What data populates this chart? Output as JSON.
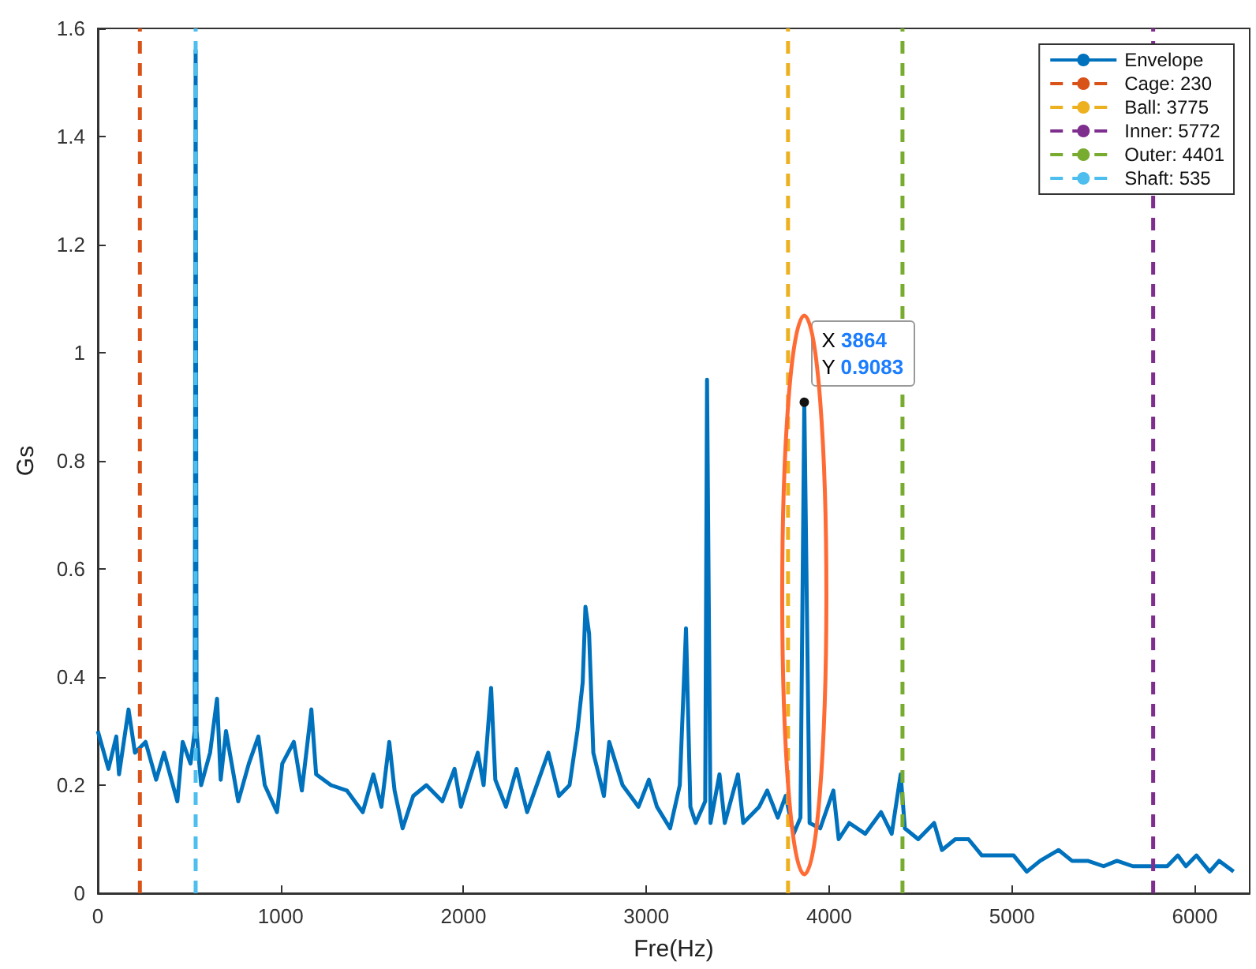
{
  "chart_data": {
    "type": "line",
    "xlabel": "Fre(Hz)",
    "ylabel": "Gs",
    "xlim": [
      0,
      6300
    ],
    "xticks": [
      0,
      1000,
      2000,
      3000,
      4000,
      5000,
      6000
    ],
    "ylim": [
      0,
      1.6
    ],
    "yticks": [
      0,
      {
        "value": 0.2,
        "label": "0.2"
      },
      {
        "value": 0.4,
        "label": "0.4"
      },
      {
        "value": 0.6,
        "label": "0.6"
      },
      {
        "value": 0.8,
        "label": "0.8"
      },
      1,
      {
        "value": 1.2,
        "label": "1.2"
      },
      {
        "value": 1.4,
        "label": "1.4"
      },
      {
        "value": 1.6,
        "label": "1.6"
      }
    ],
    "grid": false,
    "legend": "top right",
    "marker": "none",
    "annotations": [
      {
        "text": "X 3864\nY 0.9083",
        "x": 3864,
        "y": 0.9083
      }
    ],
    "series": [
      {
        "name": "Envelope",
        "color": "#0072bd",
        "line_style": "solid",
        "x": [
          0,
          58,
          101,
          116,
          168,
          203,
          261,
          319,
          362,
          435,
          464,
          507,
          530,
          535,
          540,
          565,
          614,
          652,
          672,
          701,
          768,
          826,
          878,
          913,
          980,
          1009,
          1072,
          1116,
          1168,
          1194,
          1275,
          1362,
          1449,
          1507,
          1551,
          1594,
          1623,
          1667,
          1725,
          1797,
          1884,
          1951,
          1986,
          2078,
          2110,
          2151,
          2174,
          2232,
          2290,
          2348,
          2464,
          2522,
          2580,
          2623,
          2652,
          2667,
          2687,
          2710,
          2768,
          2797,
          2870,
          2957,
          3014,
          3058,
          3130,
          3183,
          3217,
          3241,
          3270,
          3322,
          3332,
          3351,
          3400,
          3429,
          3501,
          3530,
          3617,
          3661,
          3719,
          3762,
          3806,
          3843,
          3864,
          3893,
          3951,
          4023,
          4052,
          4110,
          4197,
          4284,
          4342,
          4391,
          4414,
          4487,
          4574,
          4617,
          4690,
          4762,
          4835,
          4922,
          5009,
          5081,
          5154,
          5255,
          5328,
          5414,
          5501,
          5574,
          5661,
          5777,
          5849,
          5907,
          5951,
          6009,
          6081,
          6133,
          6212
        ],
        "values": [
          0.3,
          0.23,
          0.29,
          0.22,
          0.34,
          0.26,
          0.28,
          0.21,
          0.26,
          0.17,
          0.28,
          0.24,
          0.3,
          1.56,
          0.3,
          0.2,
          0.26,
          0.36,
          0.21,
          0.3,
          0.17,
          0.24,
          0.29,
          0.2,
          0.15,
          0.24,
          0.28,
          0.19,
          0.34,
          0.22,
          0.2,
          0.19,
          0.15,
          0.22,
          0.16,
          0.28,
          0.19,
          0.12,
          0.18,
          0.2,
          0.17,
          0.23,
          0.16,
          0.26,
          0.2,
          0.38,
          0.21,
          0.16,
          0.23,
          0.15,
          0.26,
          0.18,
          0.2,
          0.3,
          0.39,
          0.53,
          0.48,
          0.26,
          0.18,
          0.28,
          0.2,
          0.16,
          0.21,
          0.16,
          0.12,
          0.2,
          0.49,
          0.16,
          0.13,
          0.17,
          0.95,
          0.13,
          0.22,
          0.13,
          0.22,
          0.13,
          0.16,
          0.19,
          0.14,
          0.18,
          0.11,
          0.14,
          0.9083,
          0.13,
          0.12,
          0.19,
          0.1,
          0.13,
          0.11,
          0.15,
          0.11,
          0.22,
          0.12,
          0.1,
          0.13,
          0.08,
          0.1,
          0.1,
          0.07,
          0.07,
          0.07,
          0.04,
          0.06,
          0.08,
          0.06,
          0.06,
          0.05,
          0.06,
          0.05,
          0.05,
          0.05,
          0.07,
          0.05,
          0.07,
          0.04,
          0.06,
          0.04
        ]
      },
      {
        "name": "Cage: 230",
        "color": "#d95319",
        "line_style": "dashed",
        "x": [
          230,
          230
        ],
        "values": [
          0,
          1.6
        ]
      },
      {
        "name": "Ball: 3775",
        "color": "#edb120",
        "line_style": "dashed",
        "x": [
          3775,
          3775
        ],
        "values": [
          0,
          1.6
        ]
      },
      {
        "name": "Inner: 5772",
        "color": "#7e2f8e",
        "line_style": "dashed",
        "x": [
          5772,
          5772
        ],
        "values": [
          0,
          1.6
        ]
      },
      {
        "name": "Outer: 4401",
        "color": "#77ac30",
        "line_style": "dashed",
        "x": [
          4401,
          4401
        ],
        "values": [
          0,
          1.6
        ]
      },
      {
        "name": "Shaft: 535",
        "color": "#4dbeee",
        "line_style": "dashed",
        "x": [
          535,
          535
        ],
        "values": [
          0,
          1.6
        ]
      }
    ]
  }
}
